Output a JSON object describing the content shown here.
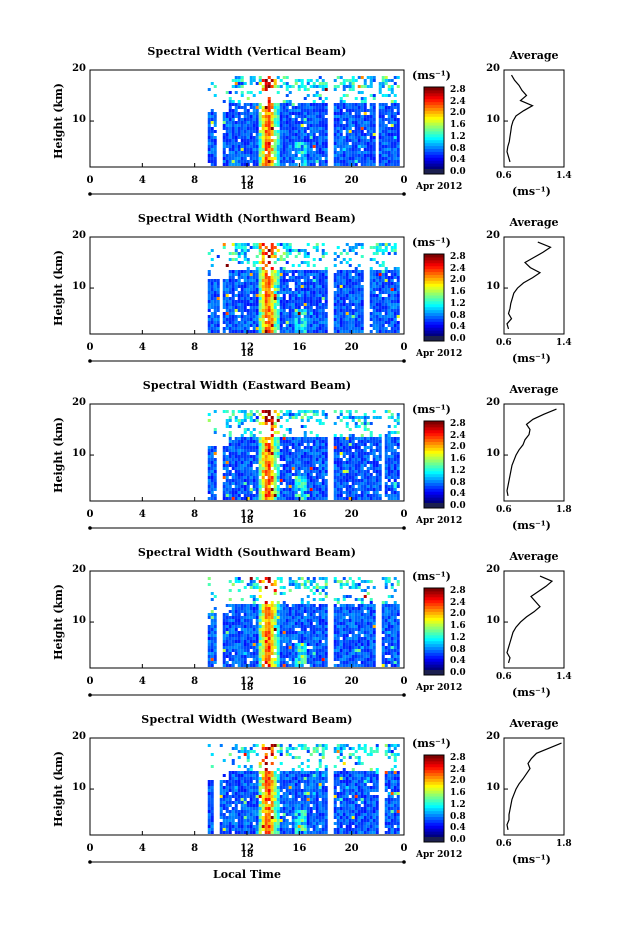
{
  "colorbar": {
    "unit": "(ms⁻¹)",
    "ticks": [
      "2.8",
      "2.4",
      "2.0",
      "1.6",
      "1.2",
      "0.8",
      "0.4",
      "0.0"
    ]
  },
  "date_label": "Apr 2012",
  "x_axis_label": "Local Time",
  "average_title": "Average",
  "average_unit": "(ms⁻¹)",
  "y_axis_label": "Height (km)",
  "chart_data": [
    {
      "type": "heatmap",
      "title": "Spectral Width (Vertical Beam)",
      "ylabel": "Height (km)",
      "yticks": [
        "20",
        "10"
      ],
      "ylim": [
        1,
        20
      ],
      "xlabel": "Local Time",
      "xticks": [
        "0",
        "4",
        "8",
        "12",
        "16",
        "20",
        "0"
      ],
      "xlim": [
        0,
        24
      ],
      "day_label": "18",
      "data_start_hour": 9,
      "colorscale_range": [
        0.0,
        2.8
      ],
      "gaps_hours": [
        [
          9.6,
          10.0
        ],
        [
          18.0,
          18.6
        ],
        [
          21.7,
          22.0
        ]
      ],
      "average": {
        "xticks": [
          "0.6",
          "1.4"
        ],
        "xlim": [
          0.6,
          1.4
        ],
        "height": [
          2,
          3,
          4,
          5,
          6,
          7,
          8,
          9,
          10,
          11,
          12,
          13,
          14,
          15,
          16,
          17,
          18,
          19
        ],
        "value": [
          0.68,
          0.66,
          0.64,
          0.65,
          0.67,
          0.68,
          0.69,
          0.7,
          0.72,
          0.76,
          0.86,
          0.98,
          0.82,
          0.9,
          0.84,
          0.8,
          0.74,
          0.7
        ]
      }
    },
    {
      "type": "heatmap",
      "title": "Spectral Width (Northward Beam)",
      "ylabel": "Height (km)",
      "yticks": [
        "20",
        "10"
      ],
      "ylim": [
        1,
        20
      ],
      "xlabel": "Local Time",
      "xticks": [
        "0",
        "4",
        "8",
        "12",
        "16",
        "20",
        "0"
      ],
      "xlim": [
        0,
        24
      ],
      "day_label": "18",
      "data_start_hour": 9,
      "colorscale_range": [
        0.0,
        2.8
      ],
      "gaps_hours": [
        [
          9.7,
          10.0
        ],
        [
          18.0,
          18.6
        ],
        [
          20.7,
          21.2
        ]
      ],
      "average": {
        "xticks": [
          "0.6",
          "1.4"
        ],
        "xlim": [
          0.6,
          1.4
        ],
        "height": [
          2,
          3,
          4,
          5,
          6,
          7,
          8,
          9,
          10,
          11,
          12,
          13,
          14,
          15,
          16,
          17,
          18,
          19
        ],
        "value": [
          0.66,
          0.64,
          0.7,
          0.66,
          0.68,
          0.69,
          0.71,
          0.73,
          0.78,
          0.86,
          0.98,
          1.08,
          0.95,
          0.88,
          1.0,
          1.12,
          1.22,
          1.05
        ]
      }
    },
    {
      "type": "heatmap",
      "title": "Spectral Width (Eastward Beam)",
      "ylabel": "Height (km)",
      "yticks": [
        "20",
        "10"
      ],
      "ylim": [
        1,
        20
      ],
      "xlabel": "Local Time",
      "xticks": [
        "0",
        "4",
        "8",
        "12",
        "16",
        "20",
        "0"
      ],
      "xlim": [
        0,
        24
      ],
      "day_label": "18",
      "data_start_hour": 9,
      "colorscale_range": [
        0.0,
        2.8
      ],
      "gaps_hours": [
        [
          9.6,
          10.0
        ],
        [
          18.0,
          18.6
        ],
        [
          22.1,
          22.5
        ]
      ],
      "average": {
        "xticks": [
          "0.6",
          "1.8"
        ],
        "xlim": [
          0.6,
          1.8
        ],
        "height": [
          2,
          3,
          4,
          5,
          6,
          7,
          8,
          9,
          10,
          11,
          12,
          13,
          14,
          15,
          16,
          17,
          18,
          19
        ],
        "value": [
          0.68,
          0.66,
          0.68,
          0.7,
          0.72,
          0.74,
          0.76,
          0.8,
          0.84,
          0.9,
          0.98,
          1.02,
          1.1,
          1.12,
          1.05,
          1.18,
          1.4,
          1.65
        ]
      }
    },
    {
      "type": "heatmap",
      "title": "Spectral Width (Southward Beam)",
      "ylabel": "Height (km)",
      "yticks": [
        "20",
        "10"
      ],
      "ylim": [
        1,
        20
      ],
      "xlabel": "Local Time",
      "xticks": [
        "0",
        "4",
        "8",
        "12",
        "16",
        "20",
        "0"
      ],
      "xlim": [
        0,
        24
      ],
      "day_label": "18",
      "data_start_hour": 9,
      "colorscale_range": [
        0.0,
        2.8
      ],
      "gaps_hours": [
        [
          9.6,
          10.0
        ],
        [
          18.0,
          18.6
        ],
        [
          21.8,
          22.2
        ]
      ],
      "average": {
        "xticks": [
          "0.6",
          "1.4"
        ],
        "xlim": [
          0.6,
          1.4
        ],
        "height": [
          2,
          3,
          4,
          5,
          6,
          7,
          8,
          9,
          10,
          11,
          12,
          13,
          14,
          15,
          16,
          17,
          18,
          19
        ],
        "value": [
          0.66,
          0.68,
          0.64,
          0.66,
          0.68,
          0.7,
          0.72,
          0.76,
          0.82,
          0.9,
          1.0,
          1.08,
          1.02,
          0.96,
          1.06,
          1.16,
          1.24,
          1.08
        ]
      }
    },
    {
      "type": "heatmap",
      "title": "Spectral Width (Westward Beam)",
      "ylabel": "Height (km)",
      "yticks": [
        "20",
        "10"
      ],
      "ylim": [
        1,
        20
      ],
      "xlabel": "Local Time",
      "xticks": [
        "0",
        "4",
        "8",
        "12",
        "16",
        "20",
        "0"
      ],
      "xlim": [
        0,
        24
      ],
      "day_label": "18",
      "data_start_hour": 9,
      "colorscale_range": [
        0.0,
        2.8
      ],
      "gaps_hours": [
        [
          9.4,
          9.8
        ],
        [
          18.0,
          18.6
        ],
        [
          22.0,
          22.4
        ]
      ],
      "average": {
        "xticks": [
          "0.6",
          "1.8"
        ],
        "xlim": [
          0.6,
          1.8
        ],
        "height": [
          2,
          3,
          4,
          5,
          6,
          7,
          8,
          9,
          10,
          11,
          12,
          13,
          14,
          15,
          16,
          17,
          18,
          19
        ],
        "value": [
          0.68,
          0.66,
          0.7,
          0.7,
          0.72,
          0.74,
          0.76,
          0.8,
          0.84,
          0.9,
          0.98,
          1.05,
          1.12,
          1.08,
          1.15,
          1.25,
          1.5,
          1.75
        ]
      }
    }
  ]
}
